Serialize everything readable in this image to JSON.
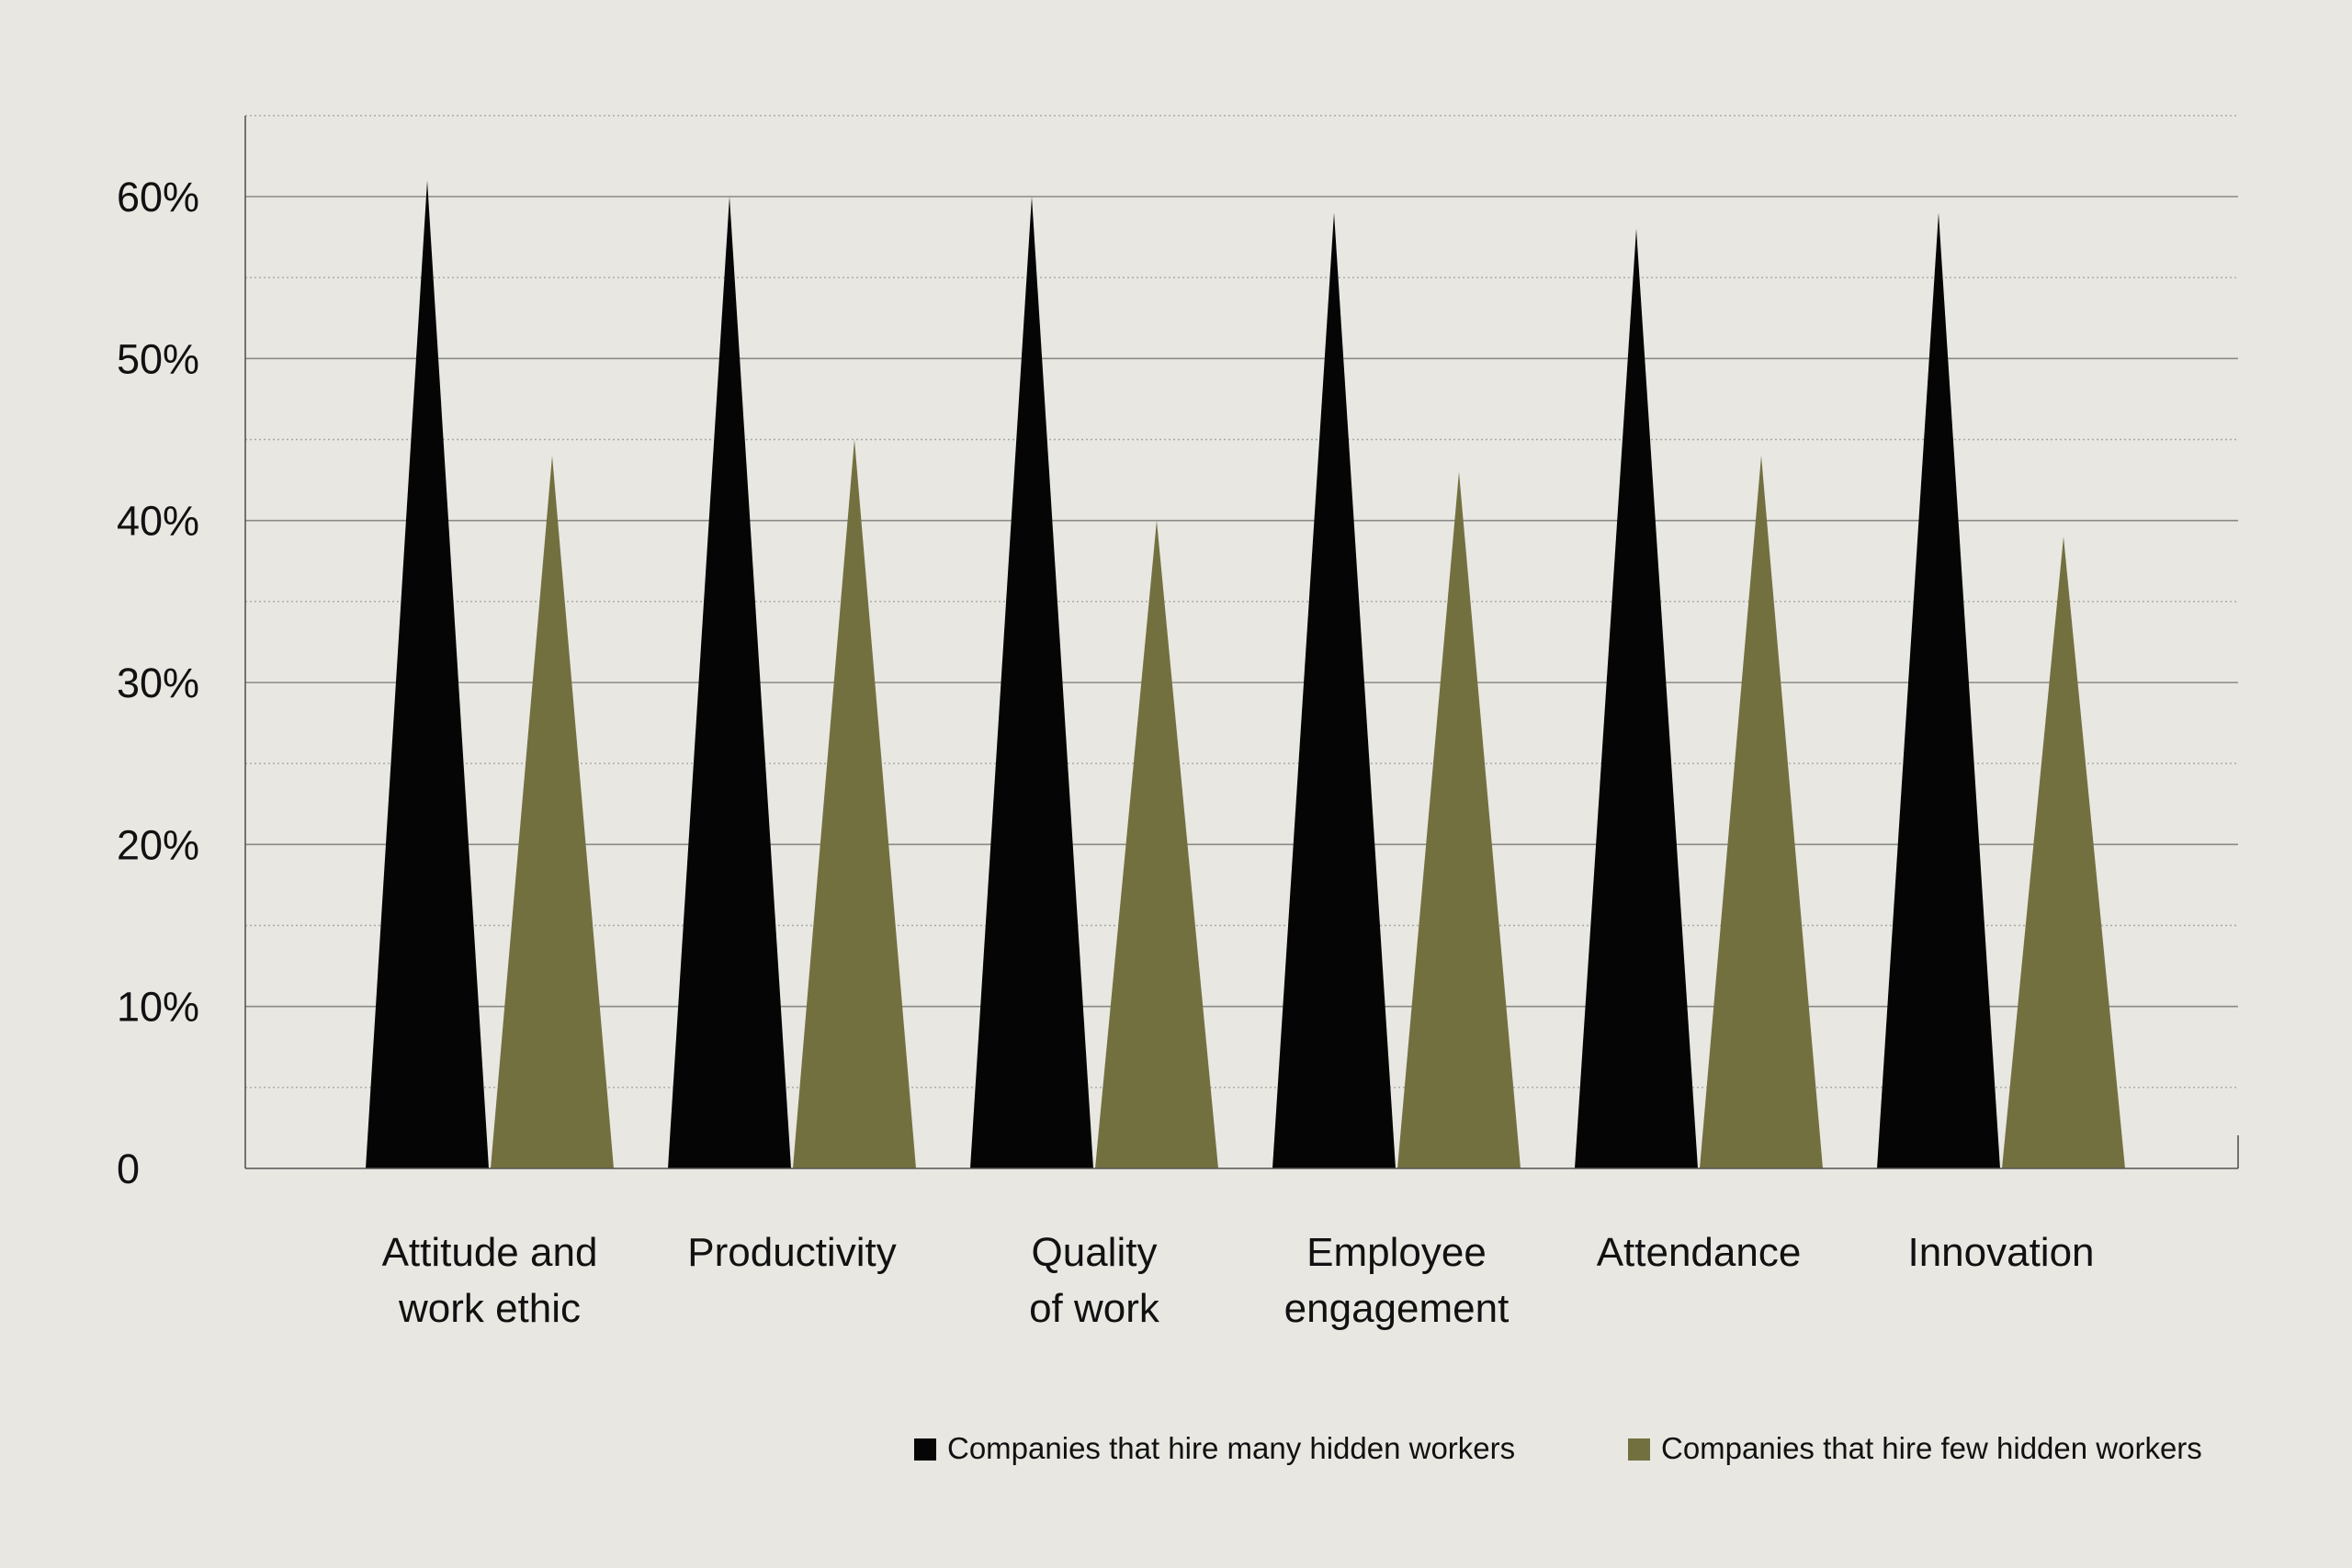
{
  "chart_data": {
    "type": "bar",
    "bar_shape": "triangle",
    "title": "",
    "xlabel": "",
    "ylabel": "",
    "ylim": [
      0,
      65
    ],
    "yticks": [
      {
        "value": 0,
        "label": "0"
      },
      {
        "value": 10,
        "label": "10%"
      },
      {
        "value": 20,
        "label": "20%"
      },
      {
        "value": 30,
        "label": "30%"
      },
      {
        "value": 40,
        "label": "40%"
      },
      {
        "value": 50,
        "label": "50%"
      },
      {
        "value": 60,
        "label": "60%"
      }
    ],
    "grid": true,
    "categories": [
      [
        "Attitude and",
        "work ethic"
      ],
      [
        "Productivity"
      ],
      [
        "Quality",
        "of work"
      ],
      [
        "Employee",
        "engagement"
      ],
      [
        "Attendance"
      ],
      [
        "Innovation"
      ]
    ],
    "series": [
      {
        "name": "Companies that hire many hidden workers",
        "color": "#050505",
        "values": [
          61,
          60,
          60,
          59,
          58,
          59
        ]
      },
      {
        "name": "Companies that hire few hidden workers",
        "color": "#737040",
        "values": [
          44,
          45,
          40,
          43,
          44,
          39
        ]
      }
    ],
    "legend_position": "bottom-right"
  },
  "colors": {
    "background": "#e8e7e2",
    "grid_major": "#8a8a86",
    "grid_minor": "#a9a9a4",
    "axis": "#555555"
  }
}
